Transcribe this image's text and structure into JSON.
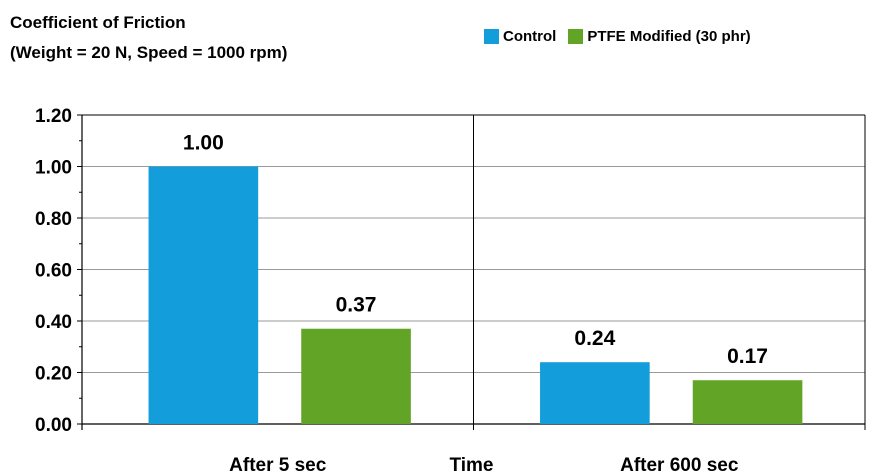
{
  "chart_data": {
    "type": "bar",
    "title": "Coefficient of Friction",
    "subtitle": "(Weight = 20 N, Speed = 1000 rpm)",
    "xlabel": "Time",
    "ylabel": "",
    "categories": [
      "After 5 sec",
      "After 600 sec"
    ],
    "series": [
      {
        "name": "Control",
        "values": [
          1.0,
          0.24
        ],
        "labels": [
          "1.00",
          "0.24"
        ],
        "color": "#139ddb"
      },
      {
        "name": "PTFE Modified (30 phr)",
        "values": [
          0.37,
          0.17
        ],
        "labels": [
          "0.37",
          "0.17"
        ],
        "color": "#62a526"
      }
    ],
    "ylim": [
      0,
      1.2
    ],
    "yticks": [
      "0.00",
      "0.20",
      "0.40",
      "0.60",
      "0.80",
      "1.00",
      "1.20"
    ],
    "grid": true,
    "legend_position": "top-right"
  }
}
